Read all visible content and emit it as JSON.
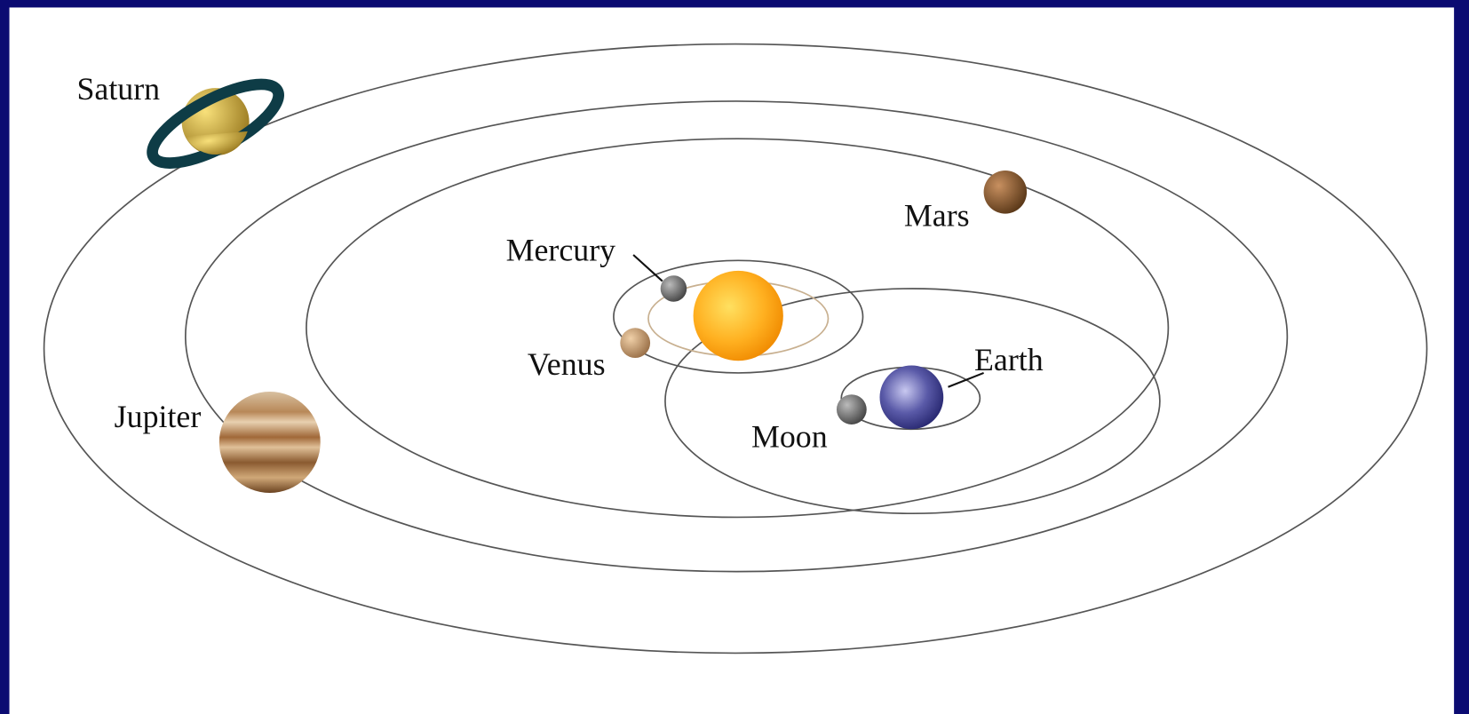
{
  "labels": {
    "saturn": "Saturn",
    "mercury": "Mercury",
    "mars": "Mars",
    "venus": "Venus",
    "earth": "Earth",
    "moon": "Moon",
    "jupiter": "Jupiter"
  }
}
